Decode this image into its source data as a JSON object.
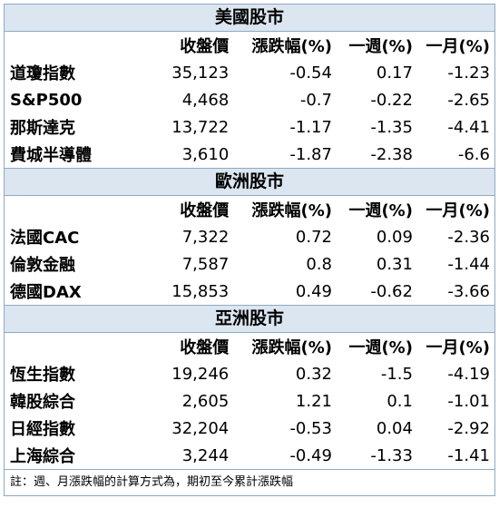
{
  "columns": [
    "收盤價",
    "漲跌幅(%)",
    "一週(%)",
    "一月(%)"
  ],
  "sections": [
    {
      "title": "美國股市",
      "rows": [
        {
          "name": "道瓊指數",
          "close": "35,123",
          "change": "-0.54",
          "week": "0.17",
          "month": "-1.23"
        },
        {
          "name": "S&P500",
          "close": "4,468",
          "change": "-0.7",
          "week": "-0.22",
          "month": "-2.65"
        },
        {
          "name": "那斯達克",
          "close": "13,722",
          "change": "-1.17",
          "week": "-1.35",
          "month": "-4.41"
        },
        {
          "name": "費城半導體",
          "close": "3,610",
          "change": "-1.87",
          "week": "-2.38",
          "month": "-6.6"
        }
      ]
    },
    {
      "title": "歐洲股市",
      "rows": [
        {
          "name": "法國CAC",
          "close": "7,322",
          "change": "0.72",
          "week": "0.09",
          "month": "-2.36"
        },
        {
          "name": "倫敦金融",
          "close": "7,587",
          "change": "0.8",
          "week": "0.31",
          "month": "-1.44"
        },
        {
          "name": "德國DAX",
          "close": "15,853",
          "change": "0.49",
          "week": "-0.62",
          "month": "-3.66"
        }
      ]
    },
    {
      "title": "亞洲股市",
      "rows": [
        {
          "name": "恆生指數",
          "close": "19,246",
          "change": "0.32",
          "week": "-1.5",
          "month": "-4.19"
        },
        {
          "name": "韓股綜合",
          "close": "2,605",
          "change": "1.21",
          "week": "0.1",
          "month": "-1.01"
        },
        {
          "name": "日經指數",
          "close": "32,204",
          "change": "-0.53",
          "week": "0.04",
          "month": "-2.92"
        },
        {
          "name": "上海綜合",
          "close": "3,244",
          "change": "-0.49",
          "week": "-1.33",
          "month": "-1.41"
        }
      ]
    }
  ],
  "note": "註：週、月漲跌幅的計算方式為，期初至今累計漲跌幅"
}
